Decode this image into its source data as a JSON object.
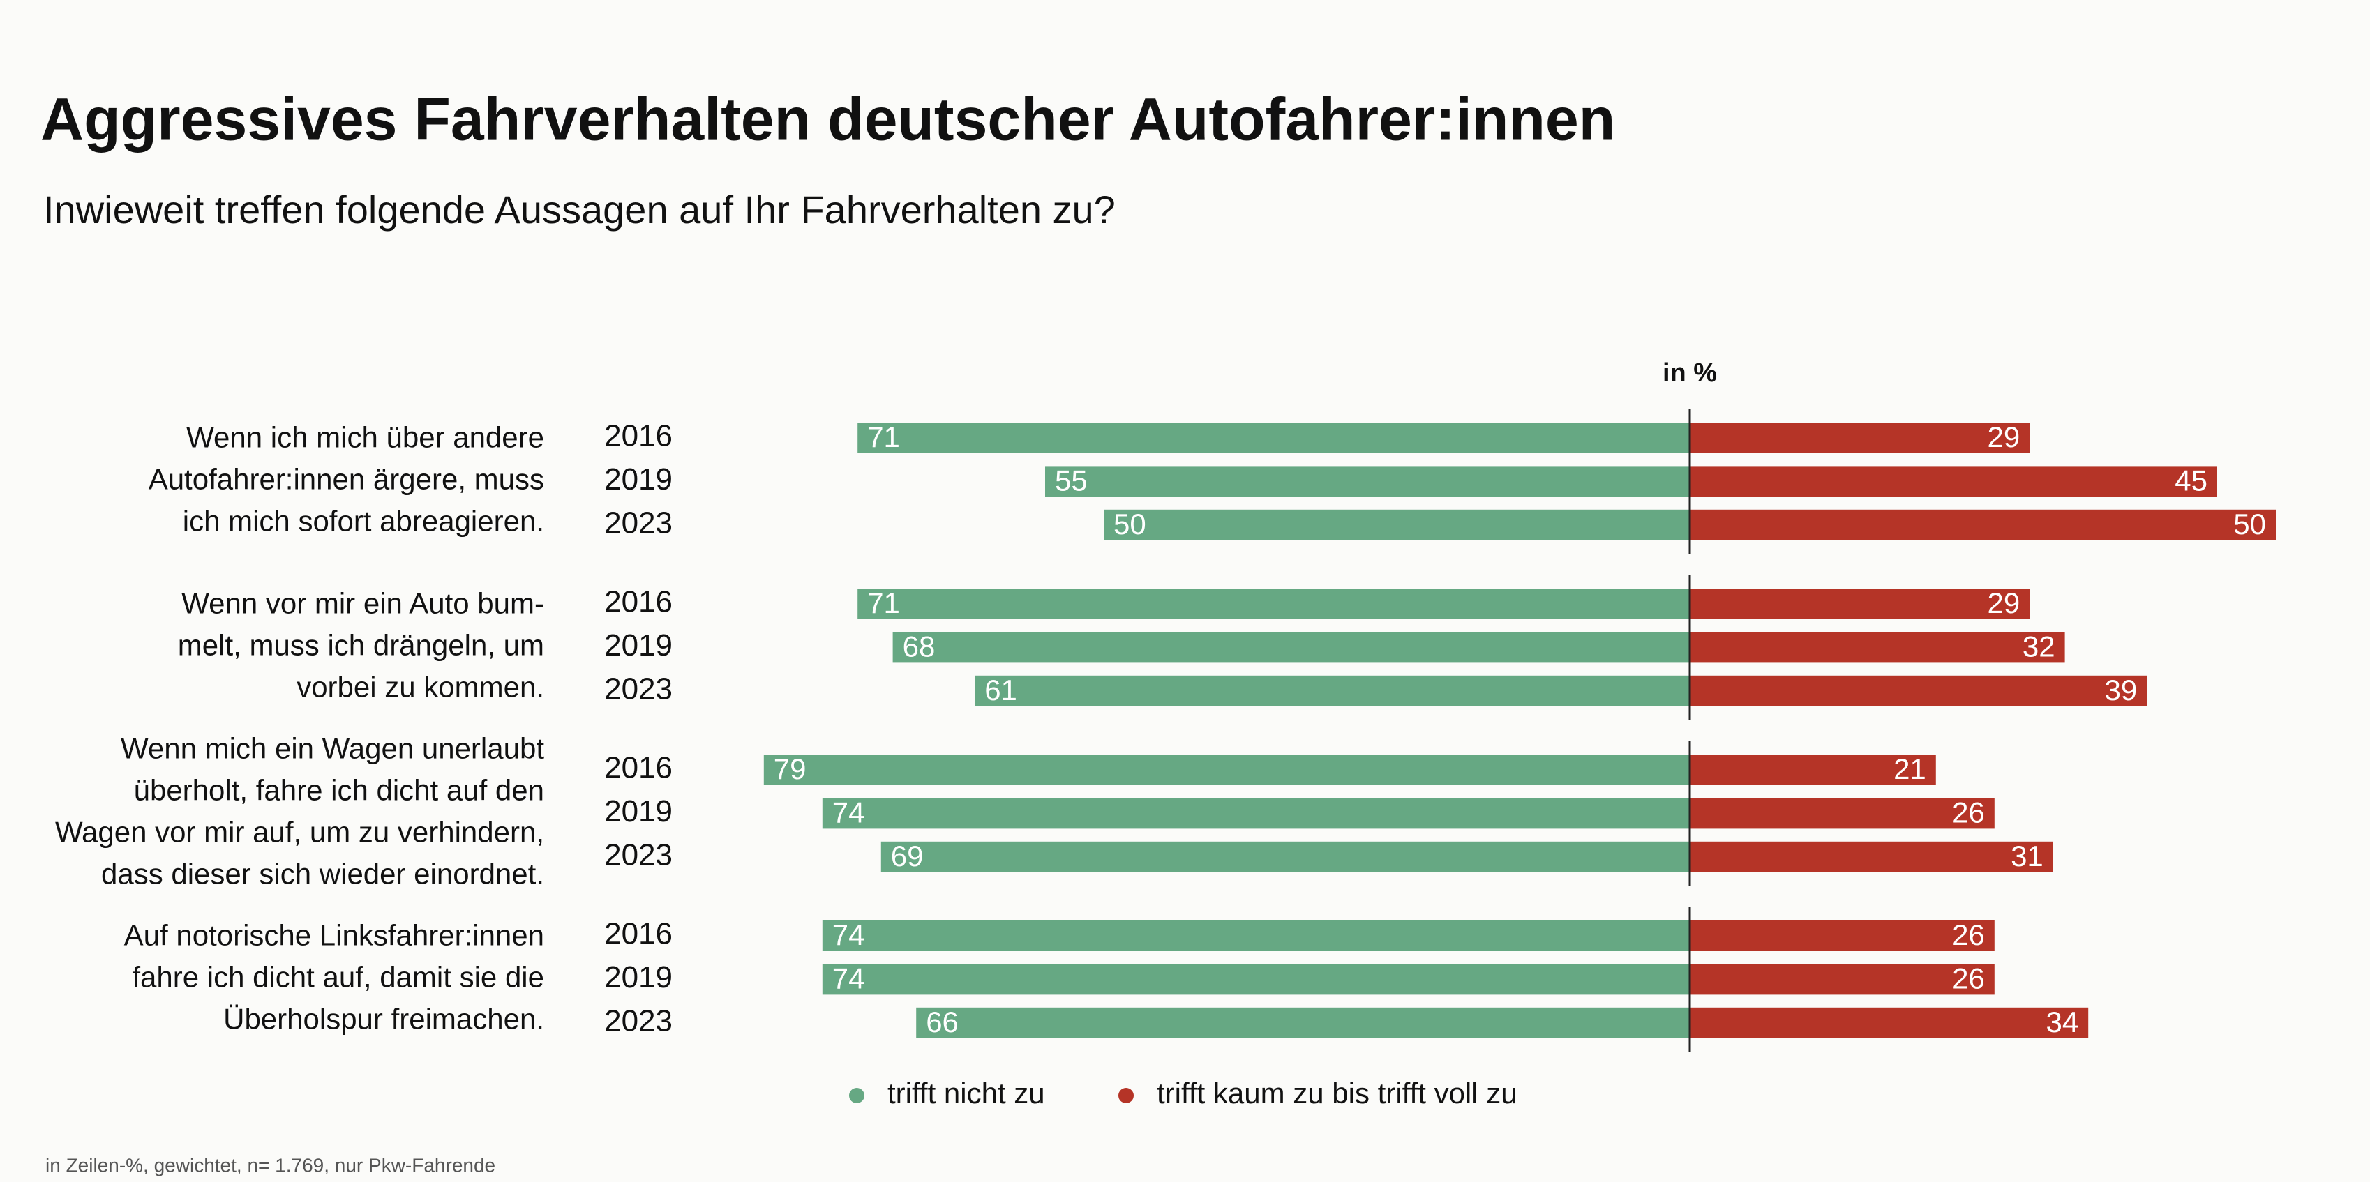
{
  "chart_data": {
    "type": "diverging_bar",
    "title": "Aggressives Fahrverhalten deutscher Autofahrer:innen",
    "subtitle": "Inwieweit treffen folgende Aussagen auf Ihr Fahrverhalten zu?",
    "unit_label": "in %",
    "footnote": "in Zeilen-%, gewichtet, n= 1.769, nur Pkw-Fahrende",
    "groups": [
      {
        "label": [
          "Wenn ich mich über andere",
          "Autofahrer:innen ärgere, muss",
          "ich mich sofort abreagieren."
        ]
      },
      {
        "label": [
          "Wenn vor mir ein Auto bum-",
          "melt, muss ich drängeln, um",
          "vorbei zu kommen."
        ]
      },
      {
        "label": [
          "Wenn mich ein Wagen unerlaubt",
          "überholt, fahre ich dicht auf den",
          "Wagen vor mir auf, um zu verhindern,",
          "dass dieser sich wieder einordnet."
        ]
      },
      {
        "label": [
          "Auf notorische Linksfahrer:innen",
          "fahre ich dicht auf, damit sie die",
          "Überholspur freimachen."
        ]
      }
    ],
    "categories": [
      "2016",
      "2019",
      "2023",
      "2016",
      "2019",
      "2023",
      "2016",
      "2019",
      "2023",
      "2016",
      "2019",
      "2023"
    ],
    "series": [
      {
        "name": "trifft nicht zu",
        "color": "#66a883",
        "direction": "left",
        "values": [
          71,
          55,
          50,
          71,
          68,
          61,
          79,
          74,
          69,
          74,
          74,
          66
        ]
      },
      {
        "name": "trifft kaum zu bis trifft voll zu",
        "color": "#b53427",
        "direction": "right",
        "values": [
          29,
          45,
          50,
          29,
          32,
          39,
          21,
          26,
          31,
          26,
          26,
          34
        ]
      }
    ]
  }
}
